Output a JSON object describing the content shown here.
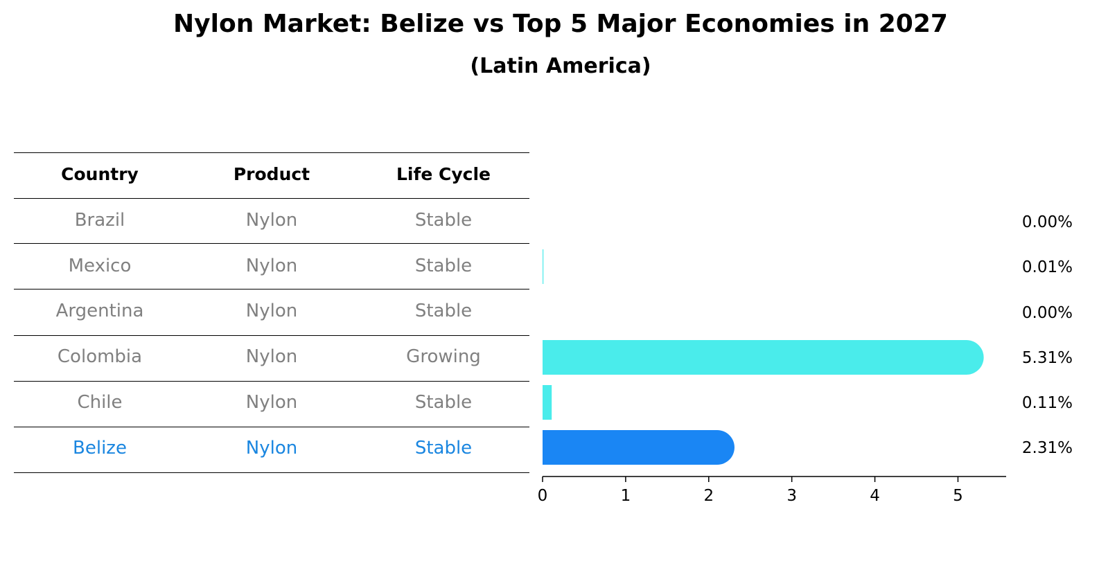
{
  "title": "Nylon Market: Belize vs Top 5 Major Economies in 2027",
  "subtitle": "(Latin America)",
  "table": {
    "headers": [
      "Country",
      "Product",
      "Life Cycle"
    ],
    "rows": [
      {
        "country": "Brazil",
        "product": "Nylon",
        "life_cycle": "Stable"
      },
      {
        "country": "Mexico",
        "product": "Nylon",
        "life_cycle": "Stable"
      },
      {
        "country": "Argentina",
        "product": "Nylon",
        "life_cycle": "Stable"
      },
      {
        "country": "Colombia",
        "product": "Nylon",
        "life_cycle": "Growing"
      },
      {
        "country": "Chile",
        "product": "Nylon",
        "life_cycle": "Stable"
      },
      {
        "country": "Belize",
        "product": "Nylon",
        "life_cycle": "Stable"
      }
    ],
    "highlight_country": "Belize"
  },
  "chart_data": {
    "type": "bar",
    "orientation": "horizontal",
    "categories": [
      "Brazil",
      "Mexico",
      "Argentina",
      "Colombia",
      "Chile",
      "Belize"
    ],
    "values": [
      0.0,
      0.01,
      0.0,
      5.31,
      0.11,
      2.31
    ],
    "value_labels": [
      "0.00%",
      "0.01%",
      "0.00%",
      "5.31%",
      "0.11%",
      "2.31%"
    ],
    "xlim": [
      0,
      5.58
    ],
    "xticks": [
      0,
      1,
      2,
      3,
      4,
      5
    ],
    "xtick_labels": [
      "0",
      "1",
      "2",
      "3",
      "4",
      "5"
    ],
    "grid": false,
    "colors": {
      "default": "#4aeceb",
      "highlight": "#1a86f4"
    }
  }
}
